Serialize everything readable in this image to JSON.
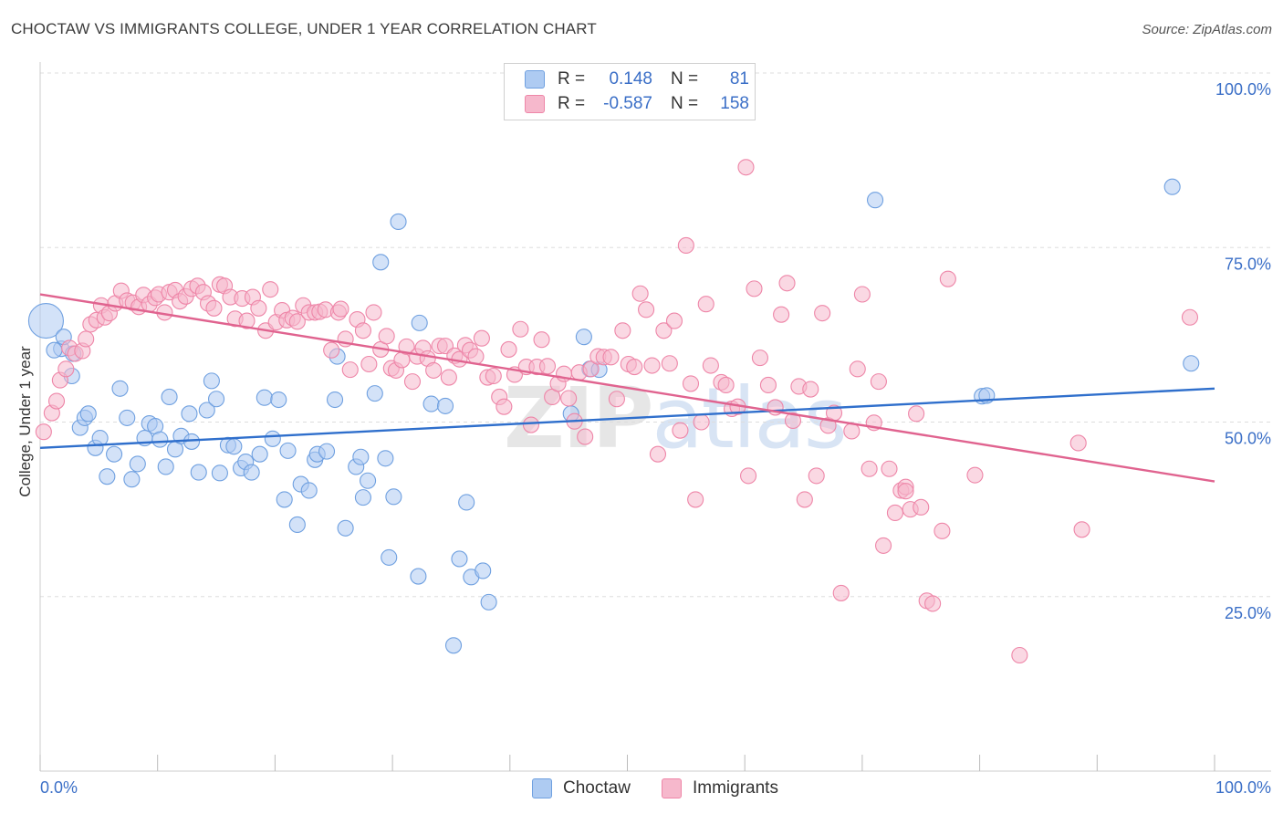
{
  "title": "CHOCTAW VS IMMIGRANTS COLLEGE, UNDER 1 YEAR CORRELATION CHART",
  "source": "Source: ZipAtlas.com",
  "watermark": {
    "zip": "ZIP",
    "atlas": "atlas"
  },
  "legend": {
    "r_label": "R =",
    "n_label": "N =",
    "rows": [
      {
        "r": "0.148",
        "n": "81",
        "color": "#aecbf2"
      },
      {
        "r": "-0.587",
        "n": "158",
        "color": "#f6b8cc"
      }
    ]
  },
  "bottom_legend": [
    "Choctaw",
    "Immigrants"
  ],
  "chart_data": {
    "type": "scatter",
    "title": "CHOCTAW VS IMMIGRANTS COLLEGE, UNDER 1 YEAR CORRELATION CHART",
    "xlabel": "",
    "ylabel": "College, Under 1 year",
    "xlim": [
      0,
      100
    ],
    "ylim": [
      0,
      100
    ],
    "x_tick_labels": [
      "0.0%",
      "100.0%"
    ],
    "y_tick_labels": [
      "100.0%",
      "75.0%",
      "50.0%",
      "25.0%"
    ],
    "y_ticks": [
      100,
      75,
      50,
      25
    ],
    "grid": true,
    "legend_position": "top-center",
    "series": [
      {
        "name": "Choctaw",
        "color": "#6fa0e0",
        "fill": "#aecbf2",
        "r": 0.148,
        "n": 81,
        "trend": [
          [
            0,
            46.3
          ],
          [
            100,
            54.8
          ]
        ],
        "points": [
          [
            0.5,
            64.5
          ],
          [
            1.8,
            60.5
          ],
          [
            1.2,
            60.3
          ],
          [
            2.0,
            62.2
          ],
          [
            2.8,
            59.8
          ],
          [
            2.7,
            56.6
          ],
          [
            3.4,
            49.2
          ],
          [
            3.8,
            50.6
          ],
          [
            4.1,
            51.2
          ],
          [
            4.7,
            46.3
          ],
          [
            5.1,
            47.7
          ],
          [
            5.7,
            42.2
          ],
          [
            6.3,
            45.4
          ],
          [
            6.8,
            54.8
          ],
          [
            7.4,
            50.6
          ],
          [
            7.8,
            41.8
          ],
          [
            8.3,
            44.0
          ],
          [
            8.9,
            47.7
          ],
          [
            9.3,
            49.8
          ],
          [
            9.8,
            49.4
          ],
          [
            10.2,
            47.5
          ],
          [
            10.7,
            43.6
          ],
          [
            11.0,
            53.6
          ],
          [
            11.5,
            46.1
          ],
          [
            12.0,
            48.0
          ],
          [
            12.7,
            51.2
          ],
          [
            12.9,
            47.2
          ],
          [
            13.5,
            42.8
          ],
          [
            14.2,
            51.7
          ],
          [
            14.6,
            55.9
          ],
          [
            15.0,
            53.3
          ],
          [
            15.3,
            42.7
          ],
          [
            16.0,
            46.7
          ],
          [
            16.5,
            46.5
          ],
          [
            17.1,
            43.4
          ],
          [
            17.5,
            44.3
          ],
          [
            18.0,
            42.8
          ],
          [
            18.7,
            45.4
          ],
          [
            19.1,
            53.5
          ],
          [
            19.8,
            47.6
          ],
          [
            20.3,
            53.2
          ],
          [
            20.8,
            38.9
          ],
          [
            21.1,
            45.9
          ],
          [
            21.9,
            35.3
          ],
          [
            22.2,
            41.1
          ],
          [
            22.9,
            40.2
          ],
          [
            23.4,
            44.6
          ],
          [
            23.6,
            45.4
          ],
          [
            24.4,
            45.8
          ],
          [
            25.3,
            59.4
          ],
          [
            25.1,
            53.2
          ],
          [
            26.0,
            34.8
          ],
          [
            26.9,
            43.6
          ],
          [
            27.3,
            45.0
          ],
          [
            27.5,
            39.2
          ],
          [
            27.9,
            41.6
          ],
          [
            28.5,
            54.1
          ],
          [
            29.0,
            72.9
          ],
          [
            29.4,
            44.8
          ],
          [
            29.7,
            30.6
          ],
          [
            30.1,
            39.3
          ],
          [
            30.5,
            78.7
          ],
          [
            32.2,
            27.9
          ],
          [
            32.3,
            64.2
          ],
          [
            33.3,
            52.6
          ],
          [
            34.5,
            52.3
          ],
          [
            35.7,
            30.4
          ],
          [
            36.3,
            38.5
          ],
          [
            36.7,
            27.8
          ],
          [
            37.7,
            28.7
          ],
          [
            38.2,
            24.2
          ],
          [
            35.2,
            18.0
          ],
          [
            45.2,
            51.2
          ],
          [
            46.3,
            62.2
          ],
          [
            46.8,
            57.6
          ],
          [
            47.6,
            57.5
          ],
          [
            71.1,
            81.8
          ],
          [
            80.2,
            53.7
          ],
          [
            80.6,
            53.8
          ],
          [
            96.4,
            83.7
          ],
          [
            98.0,
            58.4
          ]
        ]
      },
      {
        "name": "Immigrants",
        "color": "#ee86a8",
        "fill": "#f6b8cc",
        "r": -0.587,
        "n": 158,
        "trend": [
          [
            0,
            68.3
          ],
          [
            100,
            41.5
          ]
        ],
        "points": [
          [
            0.3,
            48.6
          ],
          [
            1.0,
            51.3
          ],
          [
            1.4,
            53.0
          ],
          [
            1.7,
            56.0
          ],
          [
            2.2,
            57.6
          ],
          [
            2.5,
            60.6
          ],
          [
            3.0,
            59.8
          ],
          [
            3.6,
            60.2
          ],
          [
            3.9,
            61.9
          ],
          [
            4.3,
            64.0
          ],
          [
            4.8,
            64.6
          ],
          [
            5.2,
            66.7
          ],
          [
            5.5,
            65.0
          ],
          [
            5.9,
            65.6
          ],
          [
            6.4,
            67.0
          ],
          [
            6.9,
            68.8
          ],
          [
            7.4,
            67.4
          ],
          [
            7.9,
            67.1
          ],
          [
            8.4,
            66.5
          ],
          [
            8.8,
            68.2
          ],
          [
            9.3,
            66.9
          ],
          [
            9.8,
            67.8
          ],
          [
            10.1,
            68.3
          ],
          [
            10.6,
            65.7
          ],
          [
            11.0,
            68.6
          ],
          [
            11.5,
            68.9
          ],
          [
            11.9,
            67.3
          ],
          [
            12.4,
            68.0
          ],
          [
            12.9,
            69.1
          ],
          [
            13.4,
            69.5
          ],
          [
            13.9,
            68.6
          ],
          [
            14.3,
            67.0
          ],
          [
            14.8,
            66.3
          ],
          [
            15.3,
            69.7
          ],
          [
            15.7,
            69.5
          ],
          [
            16.2,
            67.9
          ],
          [
            16.6,
            64.8
          ],
          [
            17.2,
            67.7
          ],
          [
            17.6,
            64.5
          ],
          [
            18.1,
            67.9
          ],
          [
            18.6,
            66.3
          ],
          [
            19.2,
            63.1
          ],
          [
            19.6,
            69.0
          ],
          [
            20.1,
            64.3
          ],
          [
            20.6,
            66.0
          ],
          [
            21.0,
            64.6
          ],
          [
            21.5,
            64.9
          ],
          [
            21.9,
            64.4
          ],
          [
            22.4,
            66.7
          ],
          [
            22.9,
            65.7
          ],
          [
            23.4,
            65.7
          ],
          [
            23.8,
            65.8
          ],
          [
            24.3,
            66.1
          ],
          [
            24.8,
            60.3
          ],
          [
            25.4,
            65.7
          ],
          [
            25.6,
            66.2
          ],
          [
            26.0,
            61.9
          ],
          [
            26.4,
            57.5
          ],
          [
            27.0,
            64.7
          ],
          [
            27.5,
            63.1
          ],
          [
            28.0,
            58.3
          ],
          [
            28.4,
            65.7
          ],
          [
            29.0,
            60.4
          ],
          [
            29.5,
            62.3
          ],
          [
            29.9,
            57.7
          ],
          [
            30.3,
            57.4
          ],
          [
            30.8,
            58.9
          ],
          [
            31.2,
            60.8
          ],
          [
            31.7,
            55.8
          ],
          [
            32.1,
            59.4
          ],
          [
            32.6,
            60.6
          ],
          [
            33.0,
            59.1
          ],
          [
            33.5,
            57.4
          ],
          [
            34.0,
            60.9
          ],
          [
            34.5,
            60.9
          ],
          [
            34.8,
            56.4
          ],
          [
            35.3,
            59.5
          ],
          [
            35.7,
            59.0
          ],
          [
            36.2,
            61.0
          ],
          [
            36.6,
            60.3
          ],
          [
            37.1,
            59.4
          ],
          [
            37.6,
            62.0
          ],
          [
            38.1,
            56.4
          ],
          [
            38.6,
            56.6
          ],
          [
            39.1,
            53.6
          ],
          [
            39.5,
            52.2
          ],
          [
            39.9,
            60.4
          ],
          [
            40.4,
            56.8
          ],
          [
            40.9,
            63.3
          ],
          [
            41.4,
            57.9
          ],
          [
            41.8,
            49.6
          ],
          [
            42.3,
            57.9
          ],
          [
            42.7,
            61.8
          ],
          [
            43.2,
            58.0
          ],
          [
            43.6,
            53.6
          ],
          [
            44.1,
            55.5
          ],
          [
            44.6,
            56.9
          ],
          [
            45.0,
            53.4
          ],
          [
            45.5,
            50.1
          ],
          [
            45.9,
            57.1
          ],
          [
            46.4,
            47.9
          ],
          [
            46.9,
            57.6
          ],
          [
            47.5,
            59.4
          ],
          [
            48.0,
            59.3
          ],
          [
            48.6,
            59.3
          ],
          [
            49.1,
            53.3
          ],
          [
            49.6,
            63.1
          ],
          [
            50.1,
            58.3
          ],
          [
            50.6,
            57.9
          ],
          [
            51.1,
            68.4
          ],
          [
            51.6,
            66.1
          ],
          [
            52.1,
            58.1
          ],
          [
            52.6,
            45.4
          ],
          [
            53.1,
            63.1
          ],
          [
            53.6,
            58.4
          ],
          [
            54.0,
            64.5
          ],
          [
            54.5,
            48.8
          ],
          [
            55.0,
            75.3
          ],
          [
            55.4,
            55.5
          ],
          [
            55.8,
            38.9
          ],
          [
            56.3,
            50.0
          ],
          [
            56.7,
            66.9
          ],
          [
            57.1,
            58.1
          ],
          [
            58.0,
            55.7
          ],
          [
            58.4,
            55.3
          ],
          [
            58.9,
            51.9
          ],
          [
            59.4,
            52.2
          ],
          [
            60.3,
            42.3
          ],
          [
            60.8,
            69.1
          ],
          [
            61.3,
            59.2
          ],
          [
            62.0,
            55.3
          ],
          [
            62.6,
            52.1
          ],
          [
            63.1,
            65.4
          ],
          [
            63.6,
            69.9
          ],
          [
            64.1,
            50.2
          ],
          [
            64.6,
            55.1
          ],
          [
            65.1,
            38.9
          ],
          [
            65.6,
            54.7
          ],
          [
            66.1,
            42.3
          ],
          [
            66.6,
            65.6
          ],
          [
            67.1,
            49.5
          ],
          [
            67.6,
            51.3
          ],
          [
            68.2,
            25.5
          ],
          [
            69.1,
            48.7
          ],
          [
            69.6,
            57.6
          ],
          [
            70.0,
            68.3
          ],
          [
            70.6,
            43.3
          ],
          [
            71.0,
            49.9
          ],
          [
            71.4,
            55.8
          ],
          [
            71.8,
            32.3
          ],
          [
            72.3,
            43.3
          ],
          [
            72.8,
            37.0
          ],
          [
            73.3,
            40.2
          ],
          [
            73.7,
            40.7
          ],
          [
            74.1,
            37.5
          ],
          [
            74.6,
            51.2
          ],
          [
            75.0,
            37.8
          ],
          [
            75.5,
            24.4
          ],
          [
            76.0,
            24.0
          ],
          [
            76.8,
            34.4
          ],
          [
            77.3,
            70.5
          ],
          [
            79.6,
            42.4
          ],
          [
            83.4,
            16.6
          ],
          [
            88.4,
            47.0
          ],
          [
            88.7,
            34.6
          ],
          [
            97.9,
            65.0
          ],
          [
            60.1,
            86.5
          ],
          [
            73.7,
            40.1
          ]
        ]
      }
    ]
  }
}
